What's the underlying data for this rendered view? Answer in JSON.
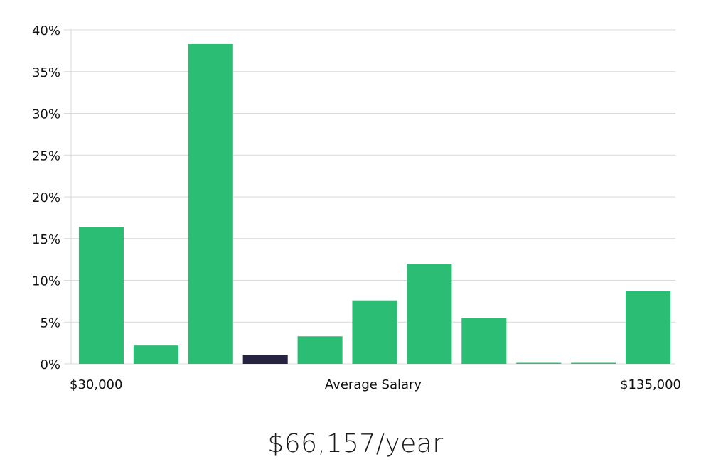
{
  "chart_data": {
    "type": "bar",
    "categories": [
      "",
      "",
      "",
      "",
      "",
      "",
      "",
      "",
      "",
      "",
      ""
    ],
    "values": [
      16.4,
      2.2,
      38.3,
      1.1,
      3.3,
      7.6,
      12.0,
      5.5,
      0.05,
      0.05,
      8.7
    ],
    "highlight_index": 3,
    "ylim": [
      0,
      40
    ],
    "y_ticks": [
      "0%",
      "5%",
      "10%",
      "15%",
      "20%",
      "25%",
      "30%",
      "35%",
      "40%"
    ],
    "x_labels": {
      "left": "$30,000",
      "center": "Average Salary",
      "right": "$135,000"
    },
    "grid": true,
    "colors": {
      "bar": "#2bbd74",
      "highlight": "#25233f",
      "grid": "#d9d9d9"
    }
  },
  "summary": {
    "average_salary": "$66,157/year"
  }
}
